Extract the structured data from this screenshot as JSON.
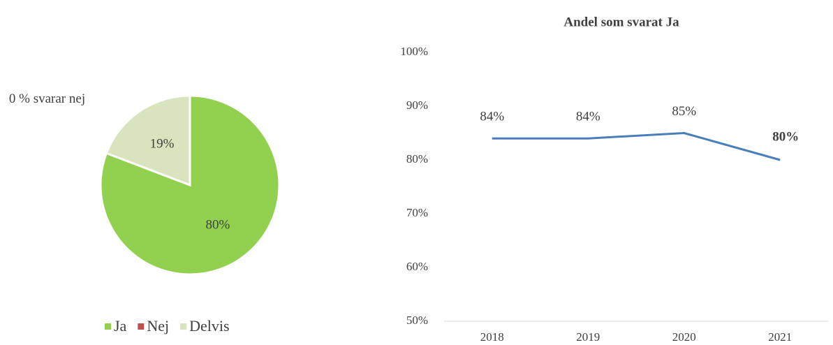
{
  "chart_data": [
    {
      "type": "pie",
      "categories": [
        "Ja",
        "Nej",
        "Delvis"
      ],
      "values": [
        80,
        0,
        19
      ],
      "value_labels": [
        "80%",
        null,
        "19%"
      ],
      "colors": [
        "#92d050",
        "#c0504d",
        "#d7e4bd"
      ],
      "annotation": "0 % svarar nej",
      "legend": "bottom"
    },
    {
      "type": "line",
      "title": "Andel som svarat Ja",
      "categories": [
        "2018",
        "2019",
        "2020",
        "2021"
      ],
      "series": [
        {
          "color": "#4a7ebb",
          "values": [
            84,
            84,
            85,
            80
          ],
          "value_labels": [
            "84%",
            "84%",
            "85%",
            "80%"
          ]
        }
      ],
      "ylim": [
        50,
        100
      ],
      "yticks": [
        {
          "value": 50,
          "label": "50%"
        },
        {
          "value": 60,
          "label": "60%"
        },
        {
          "value": 70,
          "label": "70%"
        },
        {
          "value": 80,
          "label": "80%"
        },
        {
          "value": 90,
          "label": "90%"
        },
        {
          "value": 100,
          "label": "100%"
        }
      ],
      "grid": false
    }
  ]
}
